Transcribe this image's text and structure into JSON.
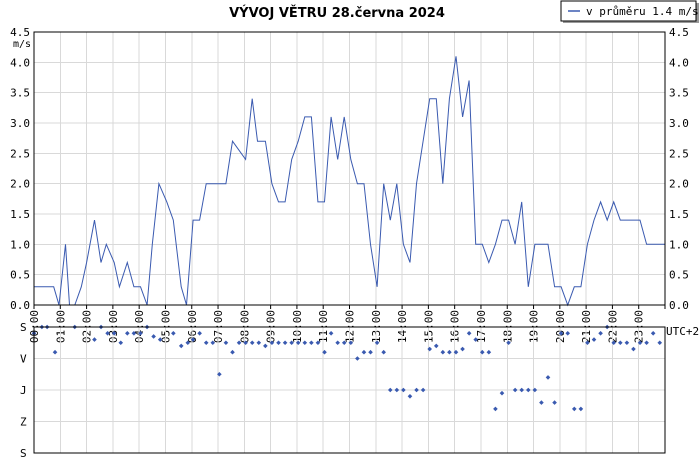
{
  "chart_data": {
    "title": "VÝVOJ VĚTRU  28.června 2024",
    "legend": "v průměru 1.4 m/s",
    "colors": {
      "series": "#3a5ab0",
      "grid": "#d9d9d9"
    },
    "speed": {
      "type": "line",
      "ylabel": "m/s",
      "ylim": [
        0,
        4.5
      ],
      "yticks": [
        "0.0",
        "0.5",
        "1.0",
        "1.5",
        "2.0",
        "2.5",
        "3.0",
        "3.5",
        "4.0",
        "4.5"
      ],
      "xticks": [
        "00:00",
        "01:00",
        "02:00",
        "03:00",
        "04:00",
        "05:00",
        "06:00",
        "07:00",
        "08:00",
        "09:00",
        "10:00",
        "11:00",
        "12:00",
        "13:00",
        "14:00",
        "15:00",
        "16:00",
        "17:00",
        "18:00",
        "19:00",
        "20:00",
        "21:00",
        "22:00",
        "23:00"
      ],
      "timezone": "UTC+2",
      "x_hours": [
        0,
        0.75,
        0.95,
        1.2,
        1.35,
        1.55,
        1.8,
        2.0,
        2.3,
        2.55,
        2.75,
        3.05,
        3.25,
        3.55,
        3.8,
        4.05,
        4.3,
        4.5,
        4.75,
        5.05,
        5.3,
        5.6,
        5.8,
        6.05,
        6.3,
        6.55,
        6.75,
        7.0,
        7.3,
        7.55,
        8.05,
        8.3,
        8.5,
        8.8,
        9.05,
        9.3,
        9.55,
        9.8,
        10.05,
        10.3,
        10.55,
        10.8,
        11.05,
        11.3,
        11.55,
        11.8,
        12.05,
        12.3,
        12.55,
        12.8,
        13.05,
        13.3,
        13.55,
        13.8,
        14.05,
        14.3,
        14.55,
        14.8,
        15.05,
        15.3,
        15.55,
        15.8,
        16.05,
        16.3,
        16.55,
        16.8,
        17.05,
        17.3,
        17.55,
        17.8,
        18.05,
        18.3,
        18.55,
        18.8,
        19.05,
        19.3,
        19.55,
        19.8,
        20.05,
        20.3,
        20.55,
        20.8,
        21.05,
        21.3,
        21.55,
        21.8,
        22.05,
        22.3,
        22.55,
        22.8,
        23.05,
        23.3,
        23.55,
        23.8,
        24.0
      ],
      "values": [
        0.3,
        0.3,
        0.0,
        1.0,
        0.0,
        0.0,
        0.3,
        0.7,
        1.4,
        0.7,
        1.0,
        0.7,
        0.3,
        0.7,
        0.3,
        0.3,
        0.0,
        1.0,
        2.0,
        1.7,
        1.4,
        0.3,
        0.0,
        1.4,
        1.4,
        2.0,
        2.0,
        2.0,
        2.0,
        2.7,
        2.4,
        3.4,
        2.7,
        2.7,
        2.0,
        1.7,
        1.7,
        2.4,
        2.7,
        3.1,
        3.1,
        1.7,
        1.7,
        3.1,
        2.4,
        3.1,
        2.4,
        2.0,
        2.0,
        1.0,
        0.3,
        2.0,
        1.4,
        2.0,
        1.0,
        0.7,
        2.0,
        2.7,
        3.4,
        3.4,
        2.0,
        3.4,
        4.1,
        3.1,
        3.7,
        1.0,
        1.0,
        0.7,
        1.0,
        1.4,
        1.4,
        1.0,
        1.7,
        0.3,
        1.0,
        1.0,
        1.0,
        0.3,
        0.3,
        0.0,
        0.3,
        0.3,
        1.0,
        1.4,
        1.7,
        1.4,
        1.7,
        1.4,
        1.4,
        1.4,
        1.4,
        1.0,
        1.0,
        1.0,
        1.0
      ]
    },
    "direction": {
      "type": "scatter",
      "categories": [
        "S",
        "V",
        "J",
        "Z",
        "S"
      ],
      "x_hours": [
        0,
        0.3,
        0.5,
        0.8,
        1.55,
        2.3,
        2.55,
        2.8,
        3.05,
        3.3,
        3.55,
        3.8,
        4.05,
        4.3,
        4.55,
        4.8,
        5.3,
        5.6,
        5.85,
        6.05,
        6.3,
        6.55,
        6.8,
        7.05,
        7.3,
        7.55,
        7.8,
        8.05,
        8.3,
        8.55,
        8.8,
        9.05,
        9.3,
        9.55,
        9.8,
        10.05,
        10.3,
        10.55,
        10.8,
        11.05,
        11.3,
        11.55,
        11.8,
        12.05,
        12.3,
        12.55,
        12.8,
        13.05,
        13.3,
        13.55,
        13.8,
        14.05,
        14.3,
        14.55,
        14.8,
        15.05,
        15.3,
        15.55,
        15.8,
        16.05,
        16.3,
        16.55,
        16.8,
        17.05,
        17.3,
        17.55,
        17.8,
        18.05,
        18.3,
        18.55,
        18.8,
        19.05,
        19.3,
        19.55,
        19.8,
        20.05,
        20.3,
        20.55,
        20.8,
        21.05,
        21.3,
        21.55,
        21.8,
        22.05,
        22.3,
        22.55,
        22.8,
        23.05,
        23.3,
        23.55,
        23.8
      ],
      "values": [
        3.8,
        4.0,
        4.0,
        3.2,
        4.0,
        3.6,
        4.0,
        3.8,
        3.8,
        3.5,
        3.8,
        3.8,
        3.8,
        4.0,
        3.7,
        3.6,
        3.8,
        3.4,
        3.5,
        3.6,
        3.8,
        3.5,
        3.5,
        2.5,
        3.5,
        3.2,
        3.5,
        3.5,
        3.5,
        3.5,
        3.4,
        3.5,
        3.5,
        3.5,
        3.5,
        3.5,
        3.5,
        3.5,
        3.5,
        3.2,
        3.8,
        3.5,
        3.5,
        3.5,
        3.0,
        3.2,
        3.2,
        3.5,
        3.2,
        2.0,
        2.0,
        2.0,
        1.8,
        2.0,
        2.0,
        3.3,
        3.4,
        3.2,
        3.2,
        3.2,
        3.3,
        3.8,
        3.6,
        3.2,
        3.2,
        1.4,
        1.9,
        3.5,
        2.0,
        2.0,
        2.0,
        2.0,
        1.6,
        2.4,
        1.6,
        3.8,
        3.8,
        1.4,
        1.4,
        3.5,
        3.6,
        3.8,
        4.0,
        3.5,
        3.5,
        3.5,
        3.3,
        3.5,
        3.5,
        3.8,
        3.5
      ]
    }
  }
}
